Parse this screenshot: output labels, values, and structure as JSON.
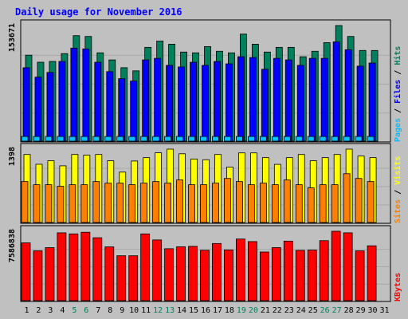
{
  "title": "Daily usage for November 2016",
  "colors": {
    "background": "#c0c0c0",
    "title": "#0000ff",
    "hits": "#00805c",
    "files": "#0000ff",
    "pages": "#00c0ff",
    "visits": "#ffff00",
    "sites": "#ff8000",
    "kbytes": "#ff0000",
    "weekend_label": "#00805c",
    "weekday_label": "#000000"
  },
  "chart_data": [
    {
      "type": "bar",
      "title": "Daily usage for November 2016",
      "categories": [
        "1",
        "2",
        "3",
        "4",
        "5",
        "6",
        "7",
        "8",
        "9",
        "10",
        "11",
        "12",
        "13",
        "14",
        "15",
        "16",
        "17",
        "18",
        "19",
        "20",
        "21",
        "22",
        "23",
        "24",
        "25",
        "26",
        "27",
        "28",
        "29",
        "30",
        "31"
      ],
      "weekend_days": [
        "5",
        "6",
        "12",
        "13",
        "19",
        "20",
        "26",
        "27"
      ],
      "y_max_label": "153671",
      "ylim": [
        0,
        153671
      ],
      "side_label": [
        "Hits",
        "Files",
        "Pages"
      ],
      "series": [
        {
          "name": "Hits",
          "values": [
            114270,
            104910,
            105950,
            116350,
            140190,
            139150,
            117390,
            107990,
            97600,
            93440,
            124670,
            133010,
            128860,
            118430,
            117390,
            125710,
            119470,
            117390,
            142270,
            128860,
            118430,
            124670,
            124670,
            112190,
            119470,
            130930,
            153670,
            139150,
            120510,
            120510,
            0
          ]
        },
        {
          "name": "Files",
          "values": [
            97600,
            85120,
            91350,
            105910,
            123630,
            122590,
            104870,
            92400,
            83040,
            79920,
            107990,
            110070,
            100720,
            98630,
            104870,
            100720,
            105910,
            102790,
            112190,
            111150,
            95520,
            110070,
            108030,
            100720,
            110070,
            110070,
            131970,
            121550,
            99680,
            103830,
            0
          ]
        },
        {
          "name": "Pages",
          "values": [
            6240,
            6240,
            6240,
            6240,
            6240,
            6240,
            6240,
            6240,
            6240,
            6240,
            6240,
            6240,
            6240,
            6240,
            6240,
            6240,
            6240,
            6240,
            6240,
            6240,
            6240,
            6240,
            6240,
            6240,
            6240,
            6240,
            6240,
            6240,
            6240,
            6240,
            0
          ]
        }
      ]
    },
    {
      "type": "bar",
      "categories": [
        "1",
        "2",
        "3",
        "4",
        "5",
        "6",
        "7",
        "8",
        "9",
        "10",
        "11",
        "12",
        "13",
        "14",
        "15",
        "16",
        "17",
        "18",
        "19",
        "20",
        "21",
        "22",
        "23",
        "24",
        "25",
        "26",
        "27",
        "28",
        "29",
        "30",
        "31"
      ],
      "y_max_label": "1398",
      "ylim": [
        0,
        1398
      ],
      "side_label": [
        "Visits",
        "Sites"
      ],
      "series": [
        {
          "name": "Visits",
          "values": [
            1296,
            1110,
            1176,
            1080,
            1296,
            1282,
            1296,
            1176,
            960,
            1172,
            1236,
            1328,
            1398,
            1310,
            1210,
            1196,
            1296,
            1056,
            1326,
            1326,
            1236,
            1108,
            1236,
            1296,
            1176,
            1236,
            1296,
            1398,
            1266,
            1236,
            0
          ]
        },
        {
          "name": "Sites",
          "values": [
            780,
            720,
            720,
            690,
            720,
            720,
            780,
            750,
            750,
            720,
            750,
            780,
            750,
            810,
            720,
            720,
            750,
            840,
            780,
            720,
            750,
            720,
            810,
            720,
            660,
            720,
            720,
            930,
            840,
            780,
            0
          ]
        }
      ]
    },
    {
      "type": "bar",
      "categories": [
        "1",
        "2",
        "3",
        "4",
        "5",
        "6",
        "7",
        "8",
        "9",
        "10",
        "11",
        "12",
        "13",
        "14",
        "15",
        "16",
        "17",
        "18",
        "19",
        "20",
        "21",
        "22",
        "23",
        "24",
        "25",
        "26",
        "27",
        "28",
        "29",
        "30",
        "31"
      ],
      "y_max_label": "7586838",
      "ylim": [
        0,
        7586838
      ],
      "side_label": [
        "KBytes"
      ],
      "series": [
        {
          "name": "KBytes",
          "values": [
            6320000,
            5450000,
            5800000,
            7420000,
            7300000,
            7480000,
            6880000,
            5880000,
            4910000,
            4910000,
            7300000,
            6640000,
            5680000,
            5890000,
            5940000,
            5510000,
            6250000,
            5550000,
            6740000,
            6460000,
            5320000,
            5800000,
            6510000,
            5500000,
            5530000,
            6560000,
            7590000,
            7420000,
            5450000,
            6000000,
            0
          ]
        }
      ]
    }
  ]
}
